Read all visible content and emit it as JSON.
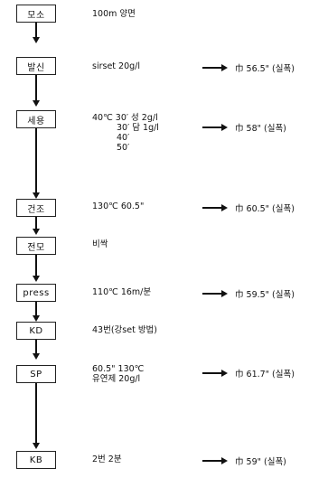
{
  "steps": [
    {
      "label": "모소",
      "desc": [
        "100m 양면"
      ],
      "result": null
    },
    {
      "label": "발신",
      "desc": [
        "sirset 20g/l"
      ],
      "result": "巾 56.5\" (실폭)"
    },
    {
      "label": "세용",
      "desc": [
        "40℃ 30′ 성 2g/l",
        "        30′ 담 1g/l",
        "        40′",
        "        50′"
      ],
      "result": "巾 58\" (실폭)"
    },
    {
      "label": "건조",
      "desc": [
        "130℃ 60.5\""
      ],
      "result": "巾 60.5\" (실폭)"
    },
    {
      "label": "전모",
      "desc": [
        "비싹"
      ],
      "result": null
    },
    {
      "label": "press",
      "desc": [
        "110℃ 16m/분"
      ],
      "result": "巾 59.5\" (실폭)"
    },
    {
      "label": "KD",
      "desc": [
        "43번(강set 방법)"
      ],
      "result": null
    },
    {
      "label": "SP",
      "desc": [
        "60.5\" 130℃",
        "유연제 20g/l"
      ],
      "result": "巾 61.7\" (실폭)"
    },
    {
      "label": "KB",
      "desc": [
        "2번 2분"
      ],
      "result": "巾 59\" (실폭)"
    }
  ],
  "colors": {
    "ink": "#111111",
    "box_border": "#222222",
    "background": "#ffffff"
  }
}
